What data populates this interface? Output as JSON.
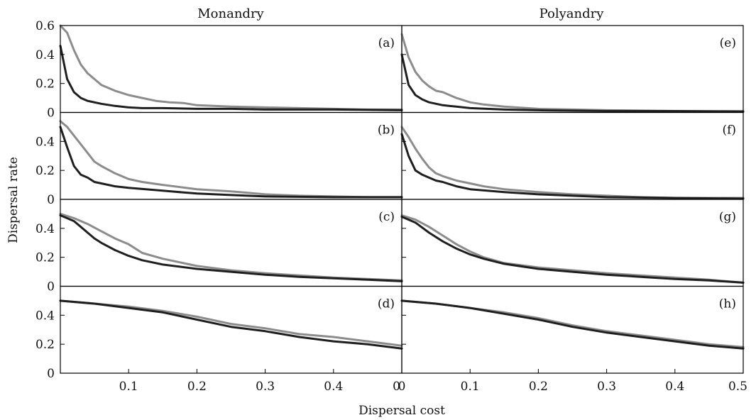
{
  "chart_data": {
    "type": "line",
    "xlabel": "Dispersal cost",
    "ylabel": "Dispersal rate",
    "xlim": [
      0,
      0.5
    ],
    "column_titles": [
      "Monandry",
      "Polyandry"
    ],
    "x_ticks": [
      0,
      0.1,
      0.2,
      0.3,
      0.4,
      0.5
    ],
    "x_tick_labels_left": [
      "",
      "0.1",
      "0.2",
      "0.3",
      "0.4",
      "0"
    ],
    "x_tick_labels_right": [
      "0",
      "0.1",
      "0.2",
      "0.3",
      "0.4",
      "0.5"
    ],
    "colors": {
      "dark": "#1f1f1f",
      "grey": "#8c8c8c"
    },
    "panels": [
      {
        "label": "(a)",
        "row": 0,
        "col": 0,
        "ylim": [
          0,
          0.6
        ],
        "y_ticks": [
          0,
          0.2,
          0.4,
          0.6
        ],
        "y_tick_labels": [
          "0",
          "0.2",
          "0.4",
          "0.6"
        ],
        "series": [
          {
            "color": "grey",
            "x": [
              0,
              0.01,
              0.02,
              0.03,
              0.04,
              0.05,
              0.06,
              0.08,
              0.1,
              0.12,
              0.14,
              0.16,
              0.18,
              0.2,
              0.25,
              0.3,
              0.35,
              0.4,
              0.45,
              0.5
            ],
            "y": [
              0.6,
              0.55,
              0.43,
              0.33,
              0.27,
              0.23,
              0.19,
              0.15,
              0.12,
              0.1,
              0.08,
              0.07,
              0.065,
              0.05,
              0.04,
              0.035,
              0.03,
              0.025,
              0.02,
              0.02
            ]
          },
          {
            "color": "dark",
            "x": [
              0,
              0.01,
              0.02,
              0.03,
              0.04,
              0.06,
              0.08,
              0.1,
              0.12,
              0.15,
              0.2,
              0.25,
              0.3,
              0.4,
              0.5
            ],
            "y": [
              0.46,
              0.23,
              0.14,
              0.1,
              0.08,
              0.06,
              0.045,
              0.035,
              0.03,
              0.03,
              0.025,
              0.025,
              0.02,
              0.02,
              0.015
            ]
          }
        ]
      },
      {
        "label": "(b)",
        "row": 1,
        "col": 0,
        "ylim": [
          0,
          0.6
        ],
        "y_ticks": [
          0,
          0.2,
          0.4
        ],
        "y_tick_labels": [
          "0",
          "0.2",
          "0.4"
        ],
        "series": [
          {
            "color": "grey",
            "x": [
              0,
              0.01,
              0.02,
              0.03,
              0.04,
              0.05,
              0.06,
              0.08,
              0.1,
              0.12,
              0.15,
              0.2,
              0.25,
              0.3,
              0.35,
              0.4,
              0.45,
              0.5
            ],
            "y": [
              0.54,
              0.5,
              0.44,
              0.38,
              0.32,
              0.26,
              0.23,
              0.18,
              0.14,
              0.12,
              0.1,
              0.07,
              0.055,
              0.035,
              0.025,
              0.02,
              0.015,
              0.015
            ]
          },
          {
            "color": "dark",
            "x": [
              0,
              0.01,
              0.02,
              0.03,
              0.04,
              0.05,
              0.06,
              0.08,
              0.1,
              0.15,
              0.2,
              0.25,
              0.3,
              0.4,
              0.5
            ],
            "y": [
              0.5,
              0.36,
              0.23,
              0.17,
              0.15,
              0.12,
              0.11,
              0.09,
              0.08,
              0.06,
              0.04,
              0.03,
              0.02,
              0.015,
              0.015
            ]
          }
        ]
      },
      {
        "label": "(c)",
        "row": 2,
        "col": 0,
        "ylim": [
          0,
          0.6
        ],
        "y_ticks": [
          0,
          0.2,
          0.4
        ],
        "y_tick_labels": [
          "0",
          "0.2",
          "0.4"
        ],
        "series": [
          {
            "color": "grey",
            "x": [
              0,
              0.02,
              0.04,
              0.06,
              0.08,
              0.1,
              0.12,
              0.15,
              0.2,
              0.25,
              0.3,
              0.35,
              0.4,
              0.45,
              0.5
            ],
            "y": [
              0.5,
              0.47,
              0.43,
              0.38,
              0.33,
              0.29,
              0.23,
              0.19,
              0.14,
              0.11,
              0.09,
              0.075,
              0.06,
              0.05,
              0.04
            ]
          },
          {
            "color": "dark",
            "x": [
              0,
              0.02,
              0.03,
              0.04,
              0.05,
              0.06,
              0.08,
              0.1,
              0.12,
              0.15,
              0.2,
              0.25,
              0.3,
              0.35,
              0.4,
              0.45,
              0.5
            ],
            "y": [
              0.49,
              0.45,
              0.41,
              0.37,
              0.33,
              0.3,
              0.25,
              0.21,
              0.18,
              0.15,
              0.12,
              0.1,
              0.08,
              0.065,
              0.055,
              0.045,
              0.035
            ]
          }
        ]
      },
      {
        "label": "(d)",
        "row": 3,
        "col": 0,
        "ylim": [
          0,
          0.6
        ],
        "y_ticks": [
          0,
          0.2,
          0.4
        ],
        "y_tick_labels": [
          "0",
          "0.2",
          "0.4"
        ],
        "series": [
          {
            "color": "grey",
            "x": [
              0,
              0.05,
              0.1,
              0.15,
              0.2,
              0.25,
              0.3,
              0.35,
              0.4,
              0.45,
              0.5
            ],
            "y": [
              0.5,
              0.48,
              0.46,
              0.43,
              0.39,
              0.34,
              0.31,
              0.27,
              0.25,
              0.22,
              0.19
            ]
          },
          {
            "color": "dark",
            "x": [
              0,
              0.05,
              0.1,
              0.15,
              0.2,
              0.25,
              0.3,
              0.35,
              0.4,
              0.45,
              0.5
            ],
            "y": [
              0.5,
              0.48,
              0.45,
              0.42,
              0.37,
              0.32,
              0.29,
              0.25,
              0.22,
              0.2,
              0.17
            ]
          }
        ]
      },
      {
        "label": "(e)",
        "row": 0,
        "col": 1,
        "ylim": [
          0,
          0.6
        ],
        "series": [
          {
            "color": "grey",
            "x": [
              0,
              0.01,
              0.02,
              0.03,
              0.04,
              0.05,
              0.06,
              0.08,
              0.1,
              0.12,
              0.15,
              0.2,
              0.25,
              0.3,
              0.4,
              0.5
            ],
            "y": [
              0.54,
              0.38,
              0.28,
              0.22,
              0.18,
              0.15,
              0.14,
              0.1,
              0.07,
              0.055,
              0.04,
              0.025,
              0.02,
              0.015,
              0.01,
              0.01
            ]
          },
          {
            "color": "dark",
            "x": [
              0,
              0.01,
              0.02,
              0.03,
              0.04,
              0.06,
              0.08,
              0.1,
              0.15,
              0.2,
              0.3,
              0.4,
              0.5
            ],
            "y": [
              0.4,
              0.19,
              0.12,
              0.09,
              0.07,
              0.05,
              0.04,
              0.03,
              0.02,
              0.015,
              0.01,
              0.01,
              0.005
            ]
          }
        ]
      },
      {
        "label": "(f)",
        "row": 1,
        "col": 1,
        "ylim": [
          0,
          0.6
        ],
        "series": [
          {
            "color": "grey",
            "x": [
              0,
              0.01,
              0.02,
              0.03,
              0.04,
              0.05,
              0.06,
              0.08,
              0.1,
              0.12,
              0.15,
              0.2,
              0.25,
              0.3,
              0.35,
              0.4,
              0.5
            ],
            "y": [
              0.5,
              0.43,
              0.35,
              0.28,
              0.22,
              0.18,
              0.16,
              0.13,
              0.11,
              0.09,
              0.07,
              0.05,
              0.035,
              0.025,
              0.015,
              0.01,
              0.01
            ]
          },
          {
            "color": "dark",
            "x": [
              0,
              0.01,
              0.02,
              0.03,
              0.04,
              0.05,
              0.06,
              0.08,
              0.1,
              0.15,
              0.2,
              0.25,
              0.3,
              0.4,
              0.5
            ],
            "y": [
              0.45,
              0.3,
              0.2,
              0.17,
              0.15,
              0.13,
              0.12,
              0.09,
              0.07,
              0.05,
              0.035,
              0.025,
              0.015,
              0.01,
              0.005
            ]
          }
        ]
      },
      {
        "label": "(g)",
        "row": 2,
        "col": 1,
        "ylim": [
          0,
          0.6
        ],
        "series": [
          {
            "color": "grey",
            "x": [
              0,
              0.02,
              0.04,
              0.06,
              0.08,
              0.1,
              0.12,
              0.15,
              0.2,
              0.25,
              0.3,
              0.35,
              0.4,
              0.45,
              0.5
            ],
            "y": [
              0.49,
              0.46,
              0.41,
              0.35,
              0.29,
              0.24,
              0.2,
              0.16,
              0.13,
              0.11,
              0.09,
              0.075,
              0.06,
              0.045,
              0.025
            ]
          },
          {
            "color": "dark",
            "x": [
              0,
              0.02,
              0.04,
              0.06,
              0.08,
              0.1,
              0.12,
              0.15,
              0.2,
              0.25,
              0.3,
              0.35,
              0.4,
              0.45,
              0.5
            ],
            "y": [
              0.48,
              0.44,
              0.37,
              0.31,
              0.26,
              0.22,
              0.19,
              0.155,
              0.12,
              0.1,
              0.08,
              0.065,
              0.05,
              0.04,
              0.025
            ]
          }
        ]
      },
      {
        "label": "(h)",
        "row": 3,
        "col": 1,
        "ylim": [
          0,
          0.6
        ],
        "series": [
          {
            "color": "grey",
            "x": [
              0,
              0.05,
              0.1,
              0.15,
              0.2,
              0.25,
              0.3,
              0.35,
              0.4,
              0.45,
              0.5
            ],
            "y": [
              0.5,
              0.48,
              0.45,
              0.42,
              0.38,
              0.33,
              0.29,
              0.26,
              0.23,
              0.2,
              0.18
            ]
          },
          {
            "color": "dark",
            "x": [
              0,
              0.05,
              0.1,
              0.15,
              0.2,
              0.25,
              0.3,
              0.35,
              0.4,
              0.45,
              0.5
            ],
            "y": [
              0.5,
              0.48,
              0.45,
              0.41,
              0.37,
              0.32,
              0.28,
              0.25,
              0.22,
              0.19,
              0.17
            ]
          }
        ]
      }
    ]
  }
}
